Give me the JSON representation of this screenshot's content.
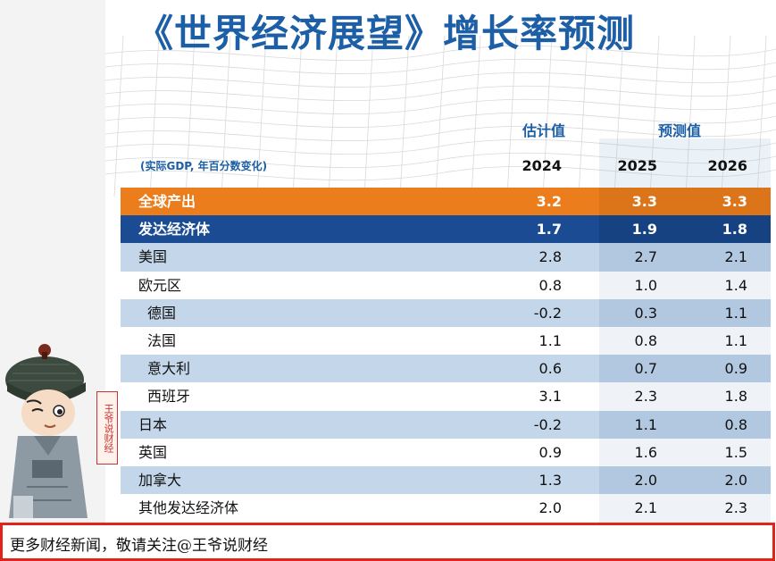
{
  "title": "《世界经济展望》增长率预测",
  "header": {
    "estimate_label": "估计值",
    "projection_label": "预测值",
    "unit_note": "(实际GDP, 年百分数变化)",
    "years": [
      "2024",
      "2025",
      "2026"
    ]
  },
  "rows": [
    {
      "label": "全球产出",
      "v2024": "3.2",
      "v2025": "3.3",
      "v2026": "3.3",
      "style": "orange"
    },
    {
      "label": "发达经济体",
      "v2024": "1.7",
      "v2025": "1.9",
      "v2026": "1.8",
      "style": "navy"
    },
    {
      "label": "美国",
      "v2024": "2.8",
      "v2025": "2.7",
      "v2026": "2.1",
      "style": "blue"
    },
    {
      "label": "欧元区",
      "v2024": "0.8",
      "v2025": "1.0",
      "v2026": "1.4",
      "style": "white"
    },
    {
      "label": "德国",
      "v2024": "-0.2",
      "v2025": "0.3",
      "v2026": "1.1",
      "style": "blue"
    },
    {
      "label": "法国",
      "v2024": "1.1",
      "v2025": "0.8",
      "v2026": "1.1",
      "style": "white"
    },
    {
      "label": "意大利",
      "v2024": "0.6",
      "v2025": "0.7",
      "v2026": "0.9",
      "style": "blue"
    },
    {
      "label": "西班牙",
      "v2024": "3.1",
      "v2025": "2.3",
      "v2026": "1.8",
      "style": "white"
    },
    {
      "label": "日本",
      "v2024": "-0.2",
      "v2025": "1.1",
      "v2026": "0.8",
      "style": "blue"
    },
    {
      "label": "英国",
      "v2024": "0.9",
      "v2025": "1.6",
      "v2026": "1.5",
      "style": "white"
    },
    {
      "label": "加拿大",
      "v2024": "1.3",
      "v2025": "2.0",
      "v2026": "2.0",
      "style": "blue"
    },
    {
      "label": "其他发达经济体",
      "v2024": "2.0",
      "v2025": "2.1",
      "v2026": "2.3",
      "style": "white"
    }
  ],
  "seal_text": "王爷说财经",
  "footer": {
    "text": "更多财经新闻，敬请关注@王爷说财经"
  }
}
